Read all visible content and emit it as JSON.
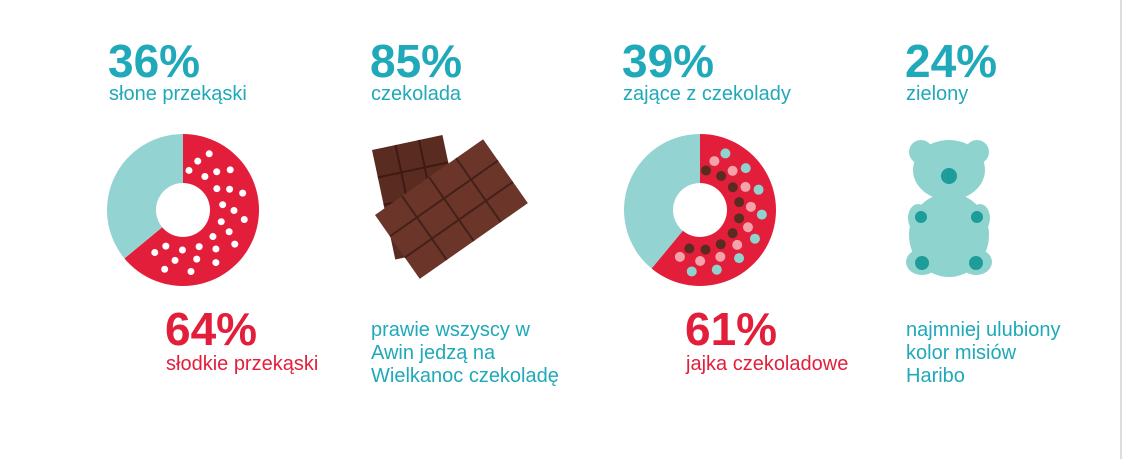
{
  "items": [
    {
      "top": {
        "value": 36,
        "label": "36%",
        "text": "słone przekąski"
      },
      "bottom": {
        "value": 64,
        "label": "64%",
        "text": "słodkie przekąski"
      }
    },
    {
      "top": {
        "value": 85,
        "label": "85%",
        "text": "czekolada"
      },
      "note": [
        "prawie wszyscy w",
        "Awin jedzą na",
        "Wielkanoc czekoladę"
      ]
    },
    {
      "top": {
        "value": 39,
        "label": "39%",
        "text": "zające z czekolady"
      },
      "bottom": {
        "value": 61,
        "label": "61%",
        "text": "jajka czekoladowe"
      }
    },
    {
      "top": {
        "value": 24,
        "label": "24%",
        "text": "zielony"
      },
      "note": [
        "najmniej ulubiony",
        "kolor misiów",
        "Haribo"
      ]
    }
  ]
}
